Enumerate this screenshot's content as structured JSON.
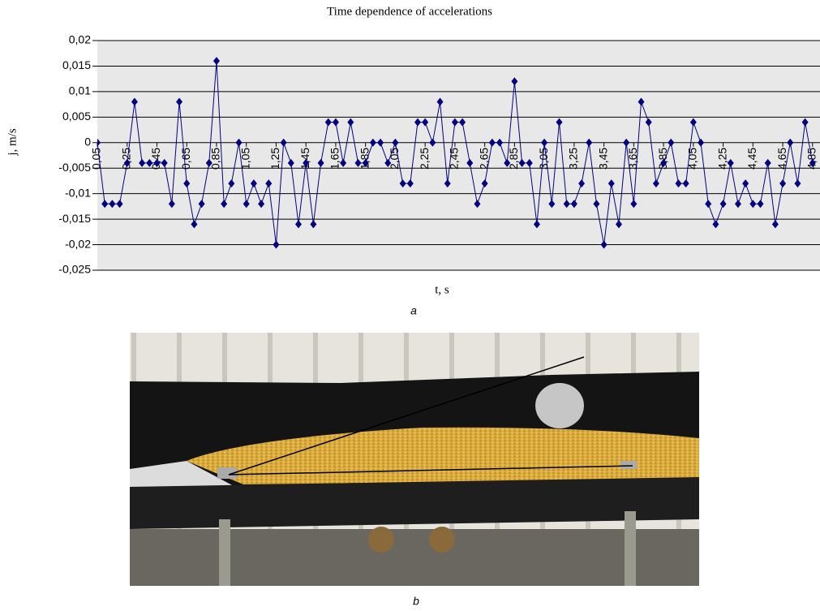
{
  "chart_data": {
    "type": "line",
    "title": "Time dependence of accelerations",
    "x_label": "t, s",
    "y_label": "j, m/s",
    "caption": "a",
    "photo_caption": "b",
    "color": "#000080",
    "grid": true,
    "xlim": [
      0.05,
      4.9
    ],
    "ylim": [
      -0.025,
      0.02
    ],
    "yticks": [
      {
        "value": 0.02,
        "label": "0,02"
      },
      {
        "value": 0.015,
        "label": "0,015"
      },
      {
        "value": 0.01,
        "label": "0,01"
      },
      {
        "value": 0.005,
        "label": "0,005"
      },
      0,
      {
        "value": -0.005,
        "label": "-0,005"
      },
      {
        "value": -0.01,
        "label": "-0,01"
      },
      {
        "value": -0.015,
        "label": "-0,015"
      },
      {
        "value": -0.02,
        "label": "-0,02"
      },
      {
        "value": -0.025,
        "label": "-0,025"
      }
    ],
    "xticks": [
      {
        "value": 0.05,
        "label": "0,05"
      },
      {
        "value": 0.25,
        "label": "0,25"
      },
      {
        "value": 0.45,
        "label": "0,45"
      },
      {
        "value": 0.65,
        "label": "0,65"
      },
      {
        "value": 0.85,
        "label": "0,85"
      },
      {
        "value": 1.05,
        "label": "1,05"
      },
      {
        "value": 1.25,
        "label": "1,25"
      },
      {
        "value": 1.45,
        "label": "1,45"
      },
      {
        "value": 1.65,
        "label": "1,65"
      },
      {
        "value": 1.85,
        "label": "1,85"
      },
      {
        "value": 2.05,
        "label": "2,05"
      },
      {
        "value": 2.25,
        "label": "2,25"
      },
      {
        "value": 2.45,
        "label": "2,45"
      },
      {
        "value": 2.65,
        "label": "2,65"
      },
      {
        "value": 2.85,
        "label": "2,85"
      },
      {
        "value": 3.05,
        "label": "3,05"
      },
      {
        "value": 3.25,
        "label": "3,25"
      },
      {
        "value": 3.45,
        "label": "3,45"
      },
      {
        "value": 3.65,
        "label": "3,65"
      },
      {
        "value": 3.85,
        "label": "3,85"
      },
      {
        "value": 4.05,
        "label": "4,05"
      },
      {
        "value": 4.25,
        "label": "4,25"
      },
      {
        "value": 4.45,
        "label": "4,45"
      },
      {
        "value": 4.65,
        "label": "4,65"
      },
      {
        "value": 4.85,
        "label": "4,85"
      }
    ],
    "x": [
      0.05,
      0.1,
      0.15,
      0.2,
      0.25,
      0.3,
      0.35,
      0.4,
      0.45,
      0.5,
      0.55,
      0.6,
      0.65,
      0.7,
      0.75,
      0.8,
      0.85,
      0.9,
      0.95,
      1,
      1.05,
      1.1,
      1.15,
      1.2,
      1.25,
      1.3,
      1.35,
      1.4,
      1.45,
      1.5,
      1.55,
      1.6,
      1.65,
      1.7,
      1.75,
      1.8,
      1.85,
      1.9,
      1.95,
      2,
      2.05,
      2.1,
      2.15,
      2.2,
      2.25,
      2.3,
      2.35,
      2.4,
      2.45,
      2.5,
      2.55,
      2.6,
      2.65,
      2.7,
      2.75,
      2.8,
      2.85,
      2.9,
      2.95,
      3,
      3.05,
      3.1,
      3.15,
      3.2,
      3.25,
      3.3,
      3.35,
      3.4,
      3.45,
      3.5,
      3.55,
      3.6,
      3.65,
      3.7,
      3.75,
      3.8,
      3.85,
      3.9,
      3.95,
      4,
      4.05,
      4.1,
      4.15,
      4.2,
      4.25,
      4.3,
      4.35,
      4.4,
      4.45,
      4.5,
      4.55,
      4.6,
      4.65,
      4.7,
      4.75,
      4.8,
      4.85
    ],
    "values": [
      0,
      -0.012,
      -0.012,
      -0.012,
      -0.004,
      0.008,
      -0.004,
      -0.004,
      -0.004,
      -0.004,
      -0.012,
      0.008,
      -0.008,
      -0.016,
      -0.012,
      -0.004,
      0.016,
      -0.012,
      -0.008,
      0,
      -0.012,
      -0.008,
      -0.012,
      -0.008,
      -0.02,
      0,
      -0.004,
      -0.016,
      -0.004,
      -0.016,
      -0.004,
      0.004,
      0.004,
      -0.004,
      0.004,
      -0.004,
      -0.004,
      0,
      0,
      -0.004,
      0,
      -0.008,
      -0.008,
      0.004,
      0.004,
      0,
      0.008,
      -0.008,
      0.004,
      0.004,
      -0.004,
      -0.012,
      -0.008,
      0,
      0,
      -0.004,
      0.012,
      -0.004,
      -0.004,
      -0.016,
      0,
      -0.012,
      0.004,
      -0.012,
      -0.012,
      -0.008,
      0,
      -0.012,
      -0.02,
      -0.008,
      -0.016,
      0,
      -0.012,
      0.008,
      0.004,
      -0.008,
      -0.004,
      0,
      -0.008,
      -0.008,
      0.004,
      0,
      -0.012,
      -0.016,
      -0.012,
      -0.004,
      -0.012,
      -0.008,
      -0.012,
      -0.012,
      -0.004,
      -0.016,
      -0.008,
      0,
      -0.008,
      0.004,
      -0.004
    ]
  }
}
